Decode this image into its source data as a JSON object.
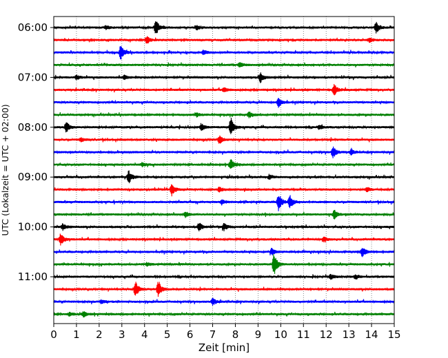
{
  "chart_data": {
    "type": "line",
    "title": "",
    "xlabel": "Zeit  [min]",
    "ylabel": "UTC (Lokalzeit = UTC + 02:00)",
    "xlim": [
      0,
      15
    ],
    "x_ticks": [
      0,
      1,
      2,
      3,
      4,
      5,
      6,
      7,
      8,
      9,
      10,
      11,
      12,
      13,
      14,
      15
    ],
    "x_tick_labels": [
      "0",
      "1",
      "2",
      "3",
      "4",
      "5",
      "6",
      "7",
      "8",
      "9",
      "10",
      "11",
      "12",
      "13",
      "14",
      "15"
    ],
    "y_tick_labels": [
      "06:00",
      "07:00",
      "08:00",
      "09:00",
      "10:00",
      "11:00"
    ],
    "grid": "vertical-dotted",
    "colors": [
      "#000000",
      "#ff0000",
      "#0000ff",
      "#008000"
    ],
    "trace_interval_min": 15,
    "traces": [
      {
        "start": "06:00",
        "color": "#000000",
        "events": [
          {
            "t": 4.5,
            "amp": 1.0
          },
          {
            "t": 14.2,
            "amp": 0.8
          },
          {
            "t": 6.3,
            "amp": 0.3
          },
          {
            "t": 2.3,
            "amp": 0.25
          }
        ]
      },
      {
        "start": "06:15",
        "color": "#ff0000",
        "events": [
          {
            "t": 4.1,
            "amp": 0.5
          },
          {
            "t": 13.9,
            "amp": 0.3
          }
        ]
      },
      {
        "start": "06:30",
        "color": "#0000ff",
        "events": [
          {
            "t": 2.95,
            "amp": 1.0
          },
          {
            "t": 6.6,
            "amp": 0.3
          }
        ]
      },
      {
        "start": "06:45",
        "color": "#008000",
        "events": [
          {
            "t": 8.2,
            "amp": 0.3
          }
        ]
      },
      {
        "start": "07:00",
        "color": "#000000",
        "events": [
          {
            "t": 9.1,
            "amp": 0.7
          },
          {
            "t": 1.0,
            "amp": 0.3
          },
          {
            "t": 3.1,
            "amp": 0.25
          }
        ]
      },
      {
        "start": "07:15",
        "color": "#ff0000",
        "events": [
          {
            "t": 12.35,
            "amp": 0.8
          },
          {
            "t": 7.5,
            "amp": 0.3
          }
        ]
      },
      {
        "start": "07:30",
        "color": "#0000ff",
        "events": [
          {
            "t": 9.9,
            "amp": 0.6
          }
        ]
      },
      {
        "start": "07:45",
        "color": "#008000",
        "events": [
          {
            "t": 8.6,
            "amp": 0.4
          },
          {
            "t": 6.3,
            "amp": 0.25
          }
        ]
      },
      {
        "start": "08:00",
        "color": "#000000",
        "events": [
          {
            "t": 0.55,
            "amp": 0.7
          },
          {
            "t": 7.8,
            "amp": 1.3
          },
          {
            "t": 6.5,
            "amp": 0.5
          },
          {
            "t": 11.7,
            "amp": 0.3
          }
        ]
      },
      {
        "start": "08:15",
        "color": "#ff0000",
        "events": [
          {
            "t": 7.3,
            "amp": 0.6
          },
          {
            "t": 1.2,
            "amp": 0.25
          }
        ]
      },
      {
        "start": "08:30",
        "color": "#0000ff",
        "events": [
          {
            "t": 12.3,
            "amp": 0.8
          },
          {
            "t": 13.1,
            "amp": 0.35
          }
        ]
      },
      {
        "start": "08:45",
        "color": "#008000",
        "events": [
          {
            "t": 7.8,
            "amp": 0.7
          },
          {
            "t": 3.9,
            "amp": 0.25
          }
        ]
      },
      {
        "start": "09:00",
        "color": "#000000",
        "events": [
          {
            "t": 3.3,
            "amp": 0.9
          },
          {
            "t": 9.5,
            "amp": 0.25
          }
        ]
      },
      {
        "start": "09:15",
        "color": "#ff0000",
        "events": [
          {
            "t": 5.2,
            "amp": 0.8
          },
          {
            "t": 7.3,
            "amp": 0.35
          },
          {
            "t": 13.8,
            "amp": 0.3
          }
        ]
      },
      {
        "start": "09:30",
        "color": "#0000ff",
        "events": [
          {
            "t": 9.9,
            "amp": 1.3
          },
          {
            "t": 10.4,
            "amp": 0.9
          },
          {
            "t": 7.4,
            "amp": 0.4
          }
        ]
      },
      {
        "start": "09:45",
        "color": "#008000",
        "events": [
          {
            "t": 12.35,
            "amp": 0.6
          },
          {
            "t": 5.8,
            "amp": 0.4
          }
        ]
      },
      {
        "start": "10:00",
        "color": "#000000",
        "events": [
          {
            "t": 6.4,
            "amp": 0.6
          },
          {
            "t": 7.5,
            "amp": 0.5
          },
          {
            "t": 0.4,
            "amp": 0.4
          }
        ]
      },
      {
        "start": "10:15",
        "color": "#ff0000",
        "events": [
          {
            "t": 0.3,
            "amp": 0.8
          },
          {
            "t": 11.9,
            "amp": 0.3
          }
        ]
      },
      {
        "start": "10:30",
        "color": "#0000ff",
        "events": [
          {
            "t": 13.6,
            "amp": 0.7
          },
          {
            "t": 9.6,
            "amp": 0.45
          }
        ]
      },
      {
        "start": "10:45",
        "color": "#008000",
        "events": [
          {
            "t": 9.7,
            "amp": 1.5
          },
          {
            "t": 4.1,
            "amp": 0.25
          }
        ]
      },
      {
        "start": "11:00",
        "color": "#000000",
        "events": [
          {
            "t": 12.2,
            "amp": 0.3
          },
          {
            "t": 13.3,
            "amp": 0.3
          }
        ]
      },
      {
        "start": "11:15",
        "color": "#ff0000",
        "events": [
          {
            "t": 3.6,
            "amp": 1.1
          },
          {
            "t": 4.6,
            "amp": 1.1
          }
        ]
      },
      {
        "start": "11:30",
        "color": "#0000ff",
        "events": [
          {
            "t": 7.0,
            "amp": 0.45
          },
          {
            "t": 2.1,
            "amp": 0.25
          }
        ]
      },
      {
        "start": "11:45",
        "color": "#008000",
        "events": [
          {
            "t": 1.3,
            "amp": 0.4
          },
          {
            "t": 0.7,
            "amp": 0.25
          }
        ]
      }
    ]
  }
}
